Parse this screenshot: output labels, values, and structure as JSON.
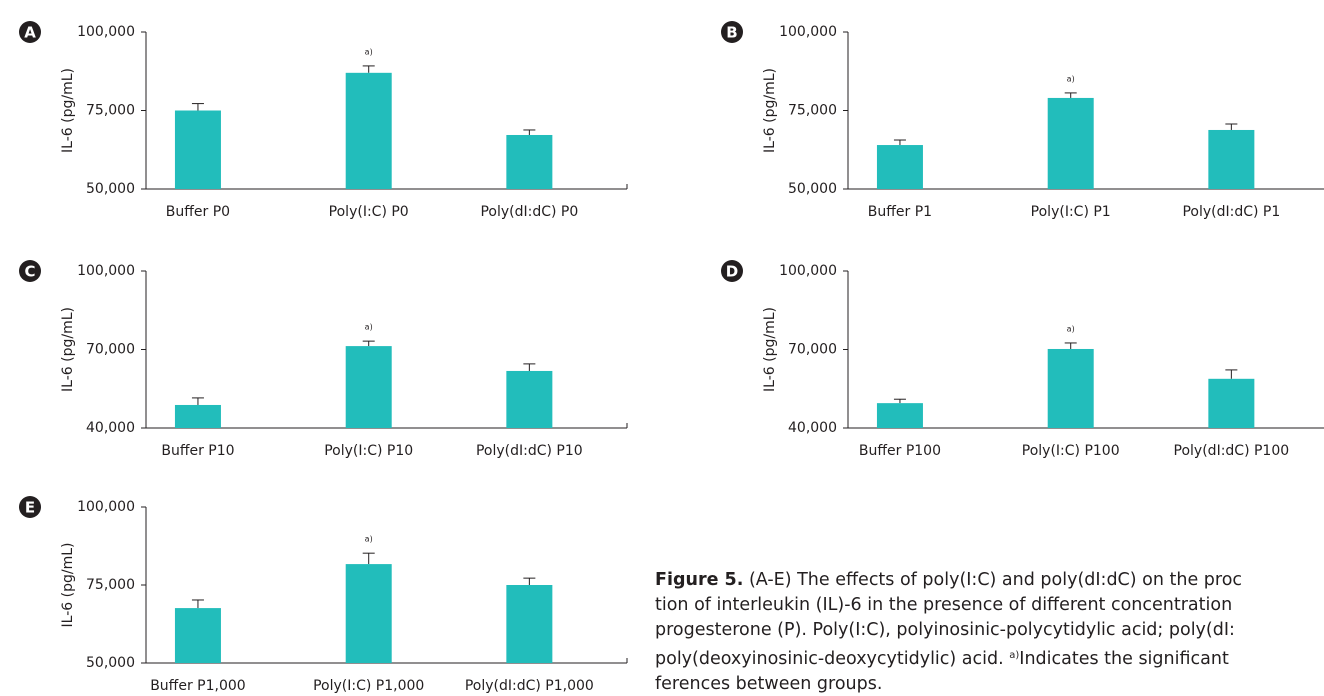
{
  "chart_data": [
    {
      "type": "bar",
      "panel": "A",
      "ylabel": "IL-6 (pg/mL)",
      "color": "#22bdbb",
      "categories": [
        "Buffer P0",
        "Poly(I:C) P0",
        "Poly(dI:dC) P0"
      ],
      "values": [
        75000,
        87000,
        67200
      ],
      "errors": [
        2200,
        2200,
        1600
      ],
      "bar_labels": [
        null,
        "a)",
        null
      ],
      "ylim": [
        50000,
        100000
      ],
      "yticks": [
        {
          "value": 50000,
          "label": "50,000"
        },
        {
          "value": 75000,
          "label": "75,000"
        },
        {
          "value": 100000,
          "label": "100,000"
        }
      ]
    },
    {
      "type": "bar",
      "panel": "B",
      "ylabel": "IL-6 (pg/mL)",
      "color": "#22bdbb",
      "categories": [
        "Buffer P1",
        "Poly(I:C) P1",
        "Poly(dI:dC) P1"
      ],
      "values": [
        64000,
        79000,
        68800
      ],
      "errors": [
        1600,
        1600,
        1900
      ],
      "bar_labels": [
        null,
        "a)",
        null
      ],
      "ylim": [
        50000,
        100000
      ],
      "yticks": [
        {
          "value": 50000,
          "label": "50,000"
        },
        {
          "value": 75000,
          "label": "75,000"
        },
        {
          "value": 100000,
          "label": "100,000"
        }
      ]
    },
    {
      "type": "bar",
      "panel": "C",
      "ylabel": "IL-6 (pg/mL)",
      "color": "#22bdbb",
      "categories": [
        "Buffer P10",
        "Poly(I:C) P10",
        "Poly(dI:dC) P10"
      ],
      "values": [
        48800,
        71300,
        61800
      ],
      "errors": [
        2700,
        1900,
        2700
      ],
      "bar_labels": [
        null,
        "a)",
        null
      ],
      "ylim": [
        40000,
        100000
      ],
      "yticks": [
        {
          "value": 40000,
          "label": "40,000"
        },
        {
          "value": 70000,
          "label": "70,000"
        },
        {
          "value": 100000,
          "label": "100,000"
        }
      ]
    },
    {
      "type": "bar",
      "panel": "D",
      "ylabel": "IL-6 (pg/mL)",
      "color": "#22bdbb",
      "categories": [
        "Buffer P100",
        "Poly(I:C) P100",
        "Poly(dI:dC) P100"
      ],
      "values": [
        49500,
        70200,
        58800
      ],
      "errors": [
        1500,
        2300,
        3400
      ],
      "bar_labels": [
        null,
        "a)",
        null
      ],
      "ylim": [
        40000,
        100000
      ],
      "yticks": [
        {
          "value": 40000,
          "label": "40,000"
        },
        {
          "value": 70000,
          "label": "70,000"
        },
        {
          "value": 100000,
          "label": "100,000"
        }
      ]
    },
    {
      "type": "bar",
      "panel": "E",
      "ylabel": "IL-6 (pg/mL)",
      "color": "#22bdbb",
      "categories": [
        "Buffer P1,000",
        "Poly(I:C) P1,000",
        "Poly(dI:dC) P1,000"
      ],
      "values": [
        67600,
        81700,
        75000
      ],
      "errors": [
        2600,
        3500,
        2200
      ],
      "bar_labels": [
        null,
        "a)",
        null
      ],
      "ylim": [
        50000,
        100000
      ],
      "yticks": [
        {
          "value": 50000,
          "label": "50,000"
        },
        {
          "value": 75000,
          "label": "75,000"
        },
        {
          "value": 100000,
          "label": "100,000"
        }
      ]
    }
  ],
  "caption": {
    "label": "Figure 5.",
    "lines": [
      "(A-E) The effects of poly(I:C) and poly(dI:dC) on the proc",
      "tion of interleukin (IL)-6 in the presence of different concentration",
      "progesterone (P). Poly(I:C), polyinosinic-polycytidylic acid; poly(dI:",
      "poly(deoxyinosinic-deoxycytidylic) acid. ",
      "ferences between groups."
    ],
    "footnote_mark": "a)",
    "footnote_text": "Indicates the significant"
  }
}
